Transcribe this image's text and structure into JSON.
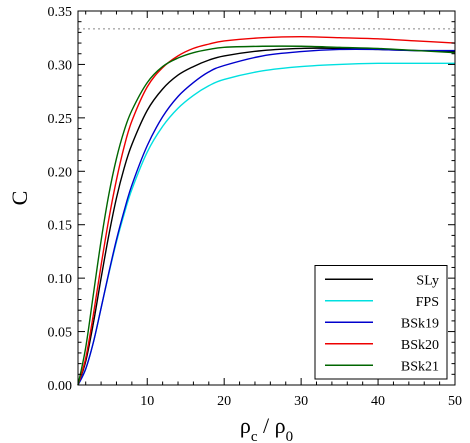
{
  "chart_data": {
    "type": "line",
    "xlabel_main": "ρ",
    "xlabel_sub1": "c",
    "xlabel_mid": " / ρ",
    "xlabel_sub2": "0",
    "ylabel": "C",
    "xlim": [
      1,
      50
    ],
    "ylim": [
      0,
      0.35
    ],
    "xticks": [
      10,
      20,
      30,
      40,
      50
    ],
    "yticks": [
      0.0,
      0.05,
      0.1,
      0.15,
      0.2,
      0.25,
      0.3,
      0.35
    ],
    "ytick_labels": [
      "0.00",
      "0.05",
      "0.10",
      "0.15",
      "0.20",
      "0.25",
      "0.30",
      "0.35"
    ],
    "reference_line": {
      "y": 0.3333,
      "style": "dotted",
      "color": "#888888"
    },
    "legend_position": "bottom-right",
    "grid": false,
    "series": [
      {
        "name": "SLy",
        "color": "#000000",
        "x": [
          1,
          2,
          3,
          4,
          5,
          6,
          7,
          8,
          10,
          12,
          14,
          16,
          18,
          20,
          25,
          30,
          35,
          40,
          45,
          50
        ],
        "y": [
          0.0,
          0.022,
          0.058,
          0.1,
          0.14,
          0.175,
          0.203,
          0.225,
          0.257,
          0.277,
          0.29,
          0.298,
          0.304,
          0.308,
          0.313,
          0.315,
          0.315,
          0.314,
          0.313,
          0.312
        ]
      },
      {
        "name": "FPS",
        "color": "#00e0e0",
        "x": [
          1,
          2,
          3,
          4,
          5,
          6,
          7,
          8,
          10,
          12,
          14,
          16,
          18,
          20,
          25,
          30,
          35,
          40,
          45,
          50
        ],
        "y": [
          0.0,
          0.015,
          0.04,
          0.072,
          0.104,
          0.134,
          0.16,
          0.183,
          0.218,
          0.242,
          0.259,
          0.271,
          0.28,
          0.286,
          0.294,
          0.298,
          0.3,
          0.301,
          0.301,
          0.301
        ]
      },
      {
        "name": "BSk19",
        "color": "#0000cc",
        "x": [
          1,
          2,
          3,
          4,
          5,
          6,
          7,
          8,
          10,
          12,
          14,
          16,
          18,
          20,
          25,
          30,
          35,
          40,
          45,
          50
        ],
        "y": [
          0.0,
          0.015,
          0.04,
          0.072,
          0.105,
          0.136,
          0.163,
          0.187,
          0.224,
          0.251,
          0.27,
          0.283,
          0.293,
          0.299,
          0.308,
          0.312,
          0.314,
          0.314,
          0.313,
          0.313
        ]
      },
      {
        "name": "BSk20",
        "color": "#ee0000",
        "x": [
          1,
          2,
          3,
          4,
          5,
          6,
          7,
          8,
          10,
          12,
          14,
          16,
          18,
          20,
          25,
          30,
          35,
          40,
          45,
          50
        ],
        "y": [
          0.0,
          0.025,
          0.066,
          0.112,
          0.155,
          0.192,
          0.223,
          0.247,
          0.279,
          0.297,
          0.308,
          0.315,
          0.319,
          0.322,
          0.325,
          0.326,
          0.325,
          0.324,
          0.322,
          0.32
        ]
      },
      {
        "name": "BSk21",
        "color": "#006600",
        "x": [
          1,
          2,
          3,
          4,
          5,
          6,
          7,
          8,
          10,
          12,
          14,
          16,
          18,
          20,
          25,
          30,
          35,
          40,
          45,
          50
        ],
        "y": [
          0.0,
          0.035,
          0.085,
          0.135,
          0.178,
          0.212,
          0.238,
          0.257,
          0.283,
          0.298,
          0.306,
          0.311,
          0.314,
          0.316,
          0.317,
          0.317,
          0.316,
          0.315,
          0.313,
          0.311
        ]
      }
    ]
  }
}
